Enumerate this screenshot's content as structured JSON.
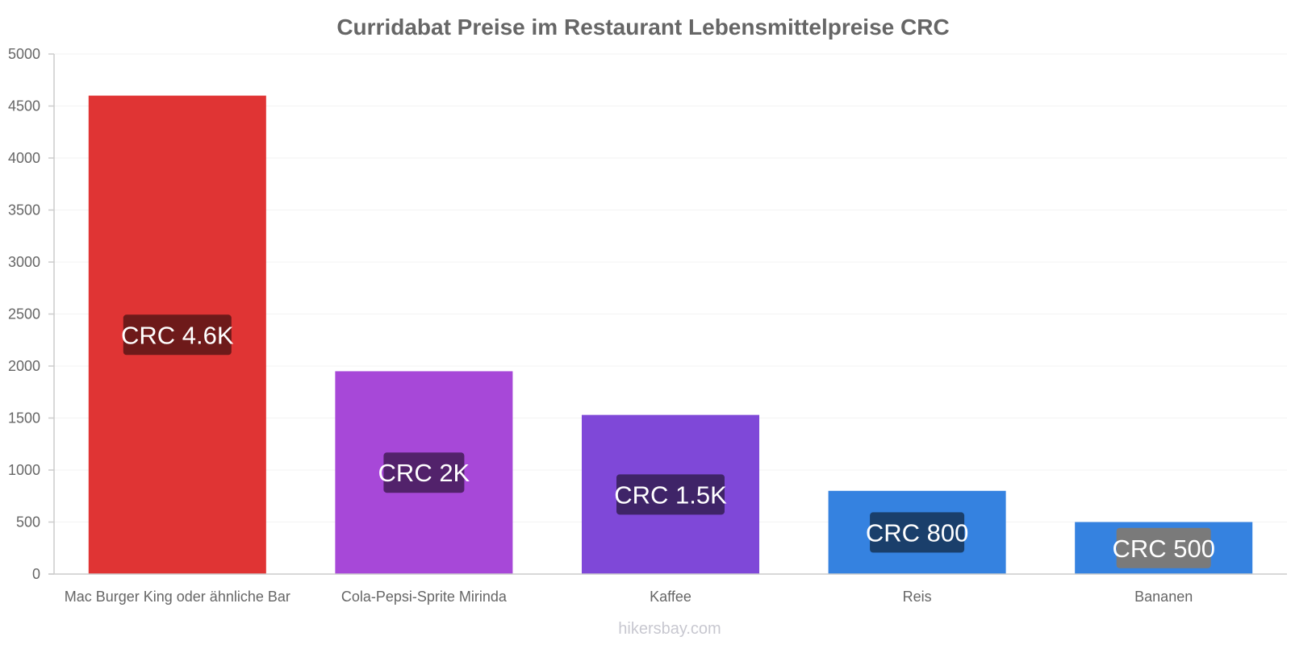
{
  "chart_data": {
    "type": "bar",
    "title": "Curridabat Preise im Restaurant Lebensmittelpreise CRC",
    "xlabel": "",
    "ylabel": "",
    "ylim": [
      0,
      5000
    ],
    "yticks": [
      0,
      500,
      1000,
      1500,
      2000,
      2500,
      3000,
      3500,
      4000,
      4500,
      5000
    ],
    "grid": true,
    "categories": [
      "Mac Burger King oder ähnliche Bar",
      "Cola-Pepsi-Sprite Mirinda",
      "Kaffee",
      "Reis",
      "Bananen"
    ],
    "values": [
      4600,
      1950,
      1530,
      800,
      500
    ],
    "data_labels": [
      "CRC 4.6K",
      "CRC 2K",
      "CRC 1.5K",
      "CRC 800",
      "CRC 500"
    ],
    "bar_colors": [
      "#e03434",
      "#a748d8",
      "#7f48d8",
      "#3582e0",
      "#3582e0"
    ],
    "label_bg_colors": [
      "#6e1a1a",
      "#52226b",
      "#3f2468",
      "#1a3f6b",
      "#7a7a7a"
    ]
  },
  "watermark": "hikersbay.com"
}
